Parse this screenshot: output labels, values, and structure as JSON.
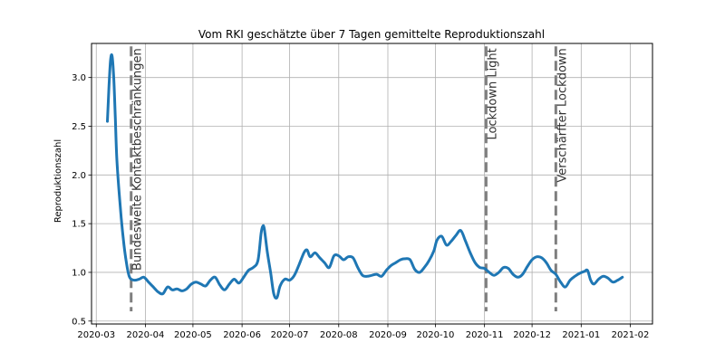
{
  "chart_data": {
    "type": "line",
    "title": "Vom  RKI geschätzte über 7 Tagen gemittelte Reproduktionszahl",
    "xlabel": "",
    "ylabel": "Reproduktionszahl",
    "ylim": [
      0.47,
      3.35
    ],
    "xlim": [
      "2020-02-27",
      "2021-02-15"
    ],
    "grid": true,
    "x_ticks": [
      "2020-03",
      "2020-04",
      "2020-05",
      "2020-06",
      "2020-07",
      "2020-08",
      "2020-09",
      "2020-10",
      "2020-11",
      "2020-12",
      "2021-01",
      "2021-02"
    ],
    "y_ticks": [
      "0.5",
      "1.0",
      "1.5",
      "2.0",
      "2.5",
      "3.0"
    ],
    "series": [
      {
        "color": "#1f77b4",
        "points": [
          [
            "2020-03-08",
            2.55
          ],
          [
            "2020-03-09",
            2.9
          ],
          [
            "2020-03-10",
            3.18
          ],
          [
            "2020-03-11",
            3.22
          ],
          [
            "2020-03-12",
            3.0
          ],
          [
            "2020-03-13",
            2.6
          ],
          [
            "2020-03-14",
            2.15
          ],
          [
            "2020-03-16",
            1.7
          ],
          [
            "2020-03-18",
            1.35
          ],
          [
            "2020-03-20",
            1.1
          ],
          [
            "2020-03-22",
            0.95
          ],
          [
            "2020-03-25",
            0.92
          ],
          [
            "2020-03-28",
            0.93
          ],
          [
            "2020-03-31",
            0.95
          ],
          [
            "2020-04-03",
            0.9
          ],
          [
            "2020-04-06",
            0.85
          ],
          [
            "2020-04-09",
            0.8
          ],
          [
            "2020-04-12",
            0.78
          ],
          [
            "2020-04-15",
            0.85
          ],
          [
            "2020-04-18",
            0.82
          ],
          [
            "2020-04-21",
            0.83
          ],
          [
            "2020-04-24",
            0.81
          ],
          [
            "2020-04-27",
            0.83
          ],
          [
            "2020-04-30",
            0.88
          ],
          [
            "2020-05-03",
            0.9
          ],
          [
            "2020-05-06",
            0.88
          ],
          [
            "2020-05-09",
            0.86
          ],
          [
            "2020-05-12",
            0.92
          ],
          [
            "2020-05-15",
            0.95
          ],
          [
            "2020-05-18",
            0.87
          ],
          [
            "2020-05-21",
            0.82
          ],
          [
            "2020-05-24",
            0.88
          ],
          [
            "2020-05-27",
            0.93
          ],
          [
            "2020-05-30",
            0.89
          ],
          [
            "2020-06-02",
            0.95
          ],
          [
            "2020-06-05",
            1.02
          ],
          [
            "2020-06-08",
            1.05
          ],
          [
            "2020-06-11",
            1.12
          ],
          [
            "2020-06-13",
            1.4
          ],
          [
            "2020-06-14",
            1.47
          ],
          [
            "2020-06-15",
            1.45
          ],
          [
            "2020-06-17",
            1.2
          ],
          [
            "2020-06-19",
            1.0
          ],
          [
            "2020-06-21",
            0.78
          ],
          [
            "2020-06-23",
            0.74
          ],
          [
            "2020-06-25",
            0.86
          ],
          [
            "2020-06-28",
            0.93
          ],
          [
            "2020-07-01",
            0.92
          ],
          [
            "2020-07-04",
            0.97
          ],
          [
            "2020-07-07",
            1.08
          ],
          [
            "2020-07-10",
            1.2
          ],
          [
            "2020-07-12",
            1.23
          ],
          [
            "2020-07-14",
            1.16
          ],
          [
            "2020-07-17",
            1.2
          ],
          [
            "2020-07-20",
            1.15
          ],
          [
            "2020-07-23",
            1.1
          ],
          [
            "2020-07-26",
            1.05
          ],
          [
            "2020-07-29",
            1.17
          ],
          [
            "2020-08-01",
            1.17
          ],
          [
            "2020-08-04",
            1.13
          ],
          [
            "2020-08-07",
            1.16
          ],
          [
            "2020-08-10",
            1.15
          ],
          [
            "2020-08-13",
            1.05
          ],
          [
            "2020-08-16",
            0.97
          ],
          [
            "2020-08-19",
            0.96
          ],
          [
            "2020-08-22",
            0.97
          ],
          [
            "2020-08-25",
            0.98
          ],
          [
            "2020-08-28",
            0.96
          ],
          [
            "2020-08-31",
            1.02
          ],
          [
            "2020-09-03",
            1.07
          ],
          [
            "2020-09-06",
            1.1
          ],
          [
            "2020-09-09",
            1.13
          ],
          [
            "2020-09-12",
            1.14
          ],
          [
            "2020-09-15",
            1.13
          ],
          [
            "2020-09-18",
            1.03
          ],
          [
            "2020-09-21",
            1.0
          ],
          [
            "2020-09-24",
            1.05
          ],
          [
            "2020-09-27",
            1.12
          ],
          [
            "2020-09-30",
            1.22
          ],
          [
            "2020-10-02",
            1.33
          ],
          [
            "2020-10-05",
            1.37
          ],
          [
            "2020-10-08",
            1.28
          ],
          [
            "2020-10-11",
            1.32
          ],
          [
            "2020-10-14",
            1.38
          ],
          [
            "2020-10-17",
            1.43
          ],
          [
            "2020-10-20",
            1.32
          ],
          [
            "2020-10-23",
            1.2
          ],
          [
            "2020-10-26",
            1.1
          ],
          [
            "2020-10-29",
            1.05
          ],
          [
            "2020-11-01",
            1.04
          ],
          [
            "2020-11-04",
            1.0
          ],
          [
            "2020-11-07",
            0.97
          ],
          [
            "2020-11-10",
            1.0
          ],
          [
            "2020-11-13",
            1.05
          ],
          [
            "2020-11-16",
            1.04
          ],
          [
            "2020-11-19",
            0.98
          ],
          [
            "2020-11-22",
            0.95
          ],
          [
            "2020-11-25",
            0.98
          ],
          [
            "2020-11-28",
            1.06
          ],
          [
            "2020-12-01",
            1.13
          ],
          [
            "2020-12-04",
            1.16
          ],
          [
            "2020-12-07",
            1.15
          ],
          [
            "2020-12-10",
            1.1
          ],
          [
            "2020-12-13",
            1.02
          ],
          [
            "2020-12-16",
            0.98
          ],
          [
            "2020-12-19",
            0.9
          ],
          [
            "2020-12-22",
            0.85
          ],
          [
            "2020-12-25",
            0.92
          ],
          [
            "2020-12-28",
            0.96
          ],
          [
            "2020-12-31",
            0.99
          ],
          [
            "2021-01-03",
            1.01
          ],
          [
            "2021-01-05",
            1.02
          ],
          [
            "2021-01-07",
            0.92
          ],
          [
            "2021-01-09",
            0.88
          ],
          [
            "2021-01-12",
            0.93
          ],
          [
            "2021-01-15",
            0.96
          ],
          [
            "2021-01-18",
            0.94
          ],
          [
            "2021-01-21",
            0.9
          ],
          [
            "2021-01-24",
            0.92
          ],
          [
            "2021-01-27",
            0.95
          ]
        ]
      }
    ],
    "annotations": [
      {
        "date": "2020-03-23",
        "label": "Bundesweite Kontaktbeschränkungen",
        "color": "#7f7f7f"
      },
      {
        "date": "2020-11-02",
        "label": "Lockdown Light",
        "color": "#7f7f7f"
      },
      {
        "date": "2020-12-16",
        "label": "Verschärfter Lockdown",
        "color": "#7f7f7f"
      }
    ]
  }
}
